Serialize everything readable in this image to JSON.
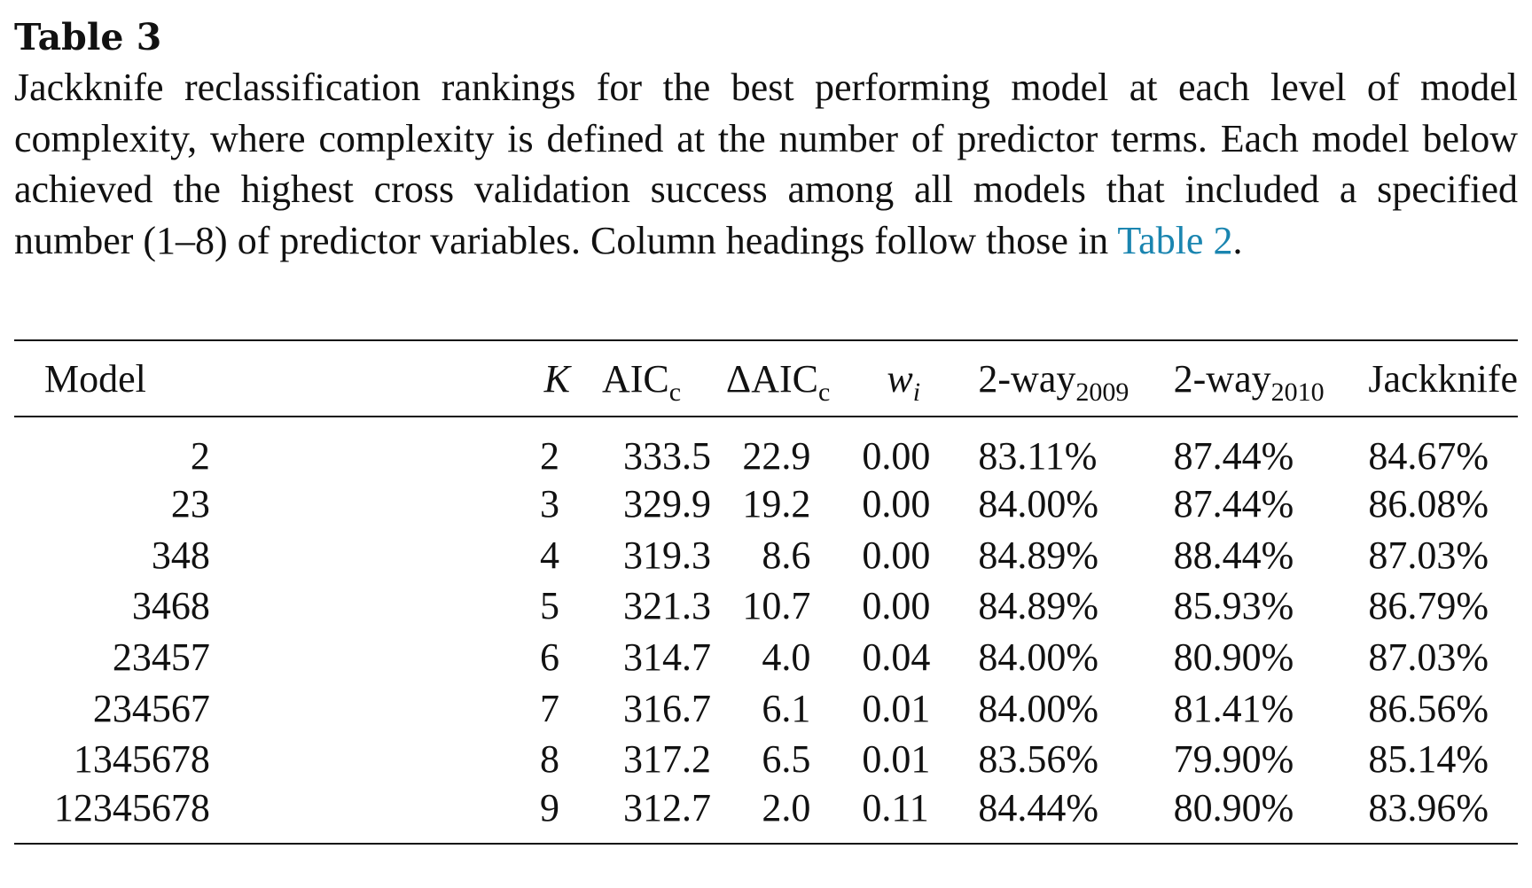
{
  "table_label": "Table 3",
  "caption": {
    "text_before_link": "Jackknife reclassification rankings for the best performing model at each level of model complexity, where complexity is defined at the number of predictor terms. Each model below achieved the highest cross validation success among all mod­els that included a specified number (1–8) of predictor variables. Column headings follow those in ",
    "link_text": "Table 2",
    "text_after_link": "."
  },
  "colors": {
    "link": "#1a85b0",
    "text": "#111111"
  },
  "headers": {
    "model": "Model",
    "k": "K",
    "aic_main": "AIC",
    "aic_sub": "c",
    "daic_main": "ΔAIC",
    "daic_sub": "c",
    "w_main": "w",
    "w_sub": "i",
    "way2009_main": "2-way",
    "way2009_sub": "2009",
    "way2010_main": "2-way",
    "way2010_sub": "2010",
    "jackknife": "Jackknife"
  },
  "rows": [
    {
      "model": "2",
      "k": "2",
      "aicc": "333.5",
      "daicc": "22.9",
      "wi": "0.00",
      "way2009": "83.11%",
      "way2010": "87.44%",
      "jackknife": "84.67%"
    },
    {
      "model": "23",
      "k": "3",
      "aicc": "329.9",
      "daicc": "19.2",
      "wi": "0.00",
      "way2009": "84.00%",
      "way2010": "87.44%",
      "jackknife": "86.08%"
    },
    {
      "model": "348",
      "k": "4",
      "aicc": "319.3",
      "daicc": "8.6",
      "wi": "0.00",
      "way2009": "84.89%",
      "way2010": "88.44%",
      "jackknife": "87.03%"
    },
    {
      "model": "3468",
      "k": "5",
      "aicc": "321.3",
      "daicc": "10.7",
      "wi": "0.00",
      "way2009": "84.89%",
      "way2010": "85.93%",
      "jackknife": "86.79%"
    },
    {
      "model": "23457",
      "k": "6",
      "aicc": "314.7",
      "daicc": "4.0",
      "wi": "0.04",
      "way2009": "84.00%",
      "way2010": "80.90%",
      "jackknife": "87.03%"
    },
    {
      "model": "234567",
      "k": "7",
      "aicc": "316.7",
      "daicc": "6.1",
      "wi": "0.01",
      "way2009": "84.00%",
      "way2010": "81.41%",
      "jackknife": "86.56%"
    },
    {
      "model": "1345678",
      "k": "8",
      "aicc": "317.2",
      "daicc": "6.5",
      "wi": "0.01",
      "way2009": "83.56%",
      "way2010": "79.90%",
      "jackknife": "85.14%"
    },
    {
      "model": "12345678",
      "k": "9",
      "aicc": "312.7",
      "daicc": "2.0",
      "wi": "0.11",
      "way2009": "84.44%",
      "way2010": "80.90%",
      "jackknife": "83.96%"
    }
  ]
}
